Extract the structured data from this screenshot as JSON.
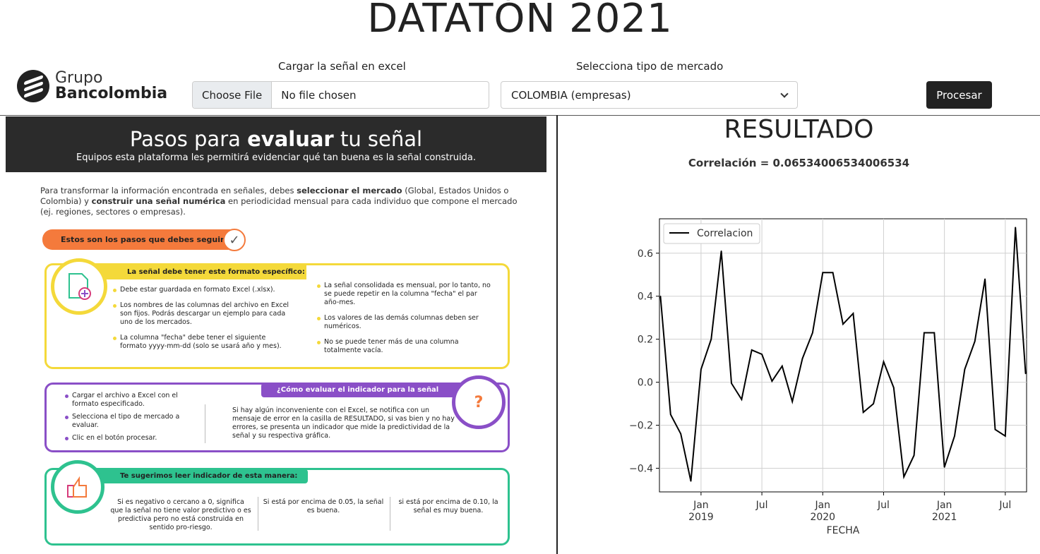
{
  "header": {
    "title": "DATATÓN 2021",
    "logo_line1": "Grupo",
    "logo_line2": "Bancolombia",
    "upload_label": "Cargar la señal en excel",
    "choose_file": "Choose File",
    "no_file": "No file chosen",
    "market_label": "Selecciona tipo de mercado",
    "market_value": "COLOMBIA (empresas)",
    "process_button": "Procesar"
  },
  "left": {
    "banner_title_a": "Pasos para ",
    "banner_title_b": "evaluar",
    "banner_title_c": " tu señal",
    "banner_subtitle": "Equipos esta plataforma les permitirá evidenciar qué tan buena es la señal construida.",
    "intro_1": "Para transformar la información encontrada en señales, debes ",
    "intro_b1": "seleccionar el mercado",
    "intro_2": " (Global, Estados Unidos o Colombia) y ",
    "intro_b2": "construir una señal numérica",
    "intro_3": " en periodicidad mensual para cada individuo que compone el mercado (ej. regiones, sectores o empresas).",
    "steps_pill": "Estos son los pasos que debes seguir:",
    "format_tag": "La señal debe tener este formato específico:",
    "format_left": [
      "Debe estar guardada en formato Excel (.xlsx).",
      "Los nombres de las columnas del archivo en Excel son fijos. Podrás descargar un ejemplo para cada uno de los mercados.",
      "La columna \"fecha\" debe tener el siguiente formato yyyy-mm-dd (solo se usará año y mes)."
    ],
    "format_right": [
      "La señal consolidada es mensual, por lo tanto, no se puede repetir en la columna \"fecha\" el par año-mes.",
      "Los valores de las demás columnas deben ser numéricos.",
      "No se puede tener más de una columna totalmente vacía."
    ],
    "eval_tag": "¿Cómo evaluar el indicador para la señal construida?",
    "eval_left": [
      "Cargar el archivo a Excel con el formato especificado.",
      "Selecciona el tipo de mercado a evaluar.",
      "Clic en el botón procesar."
    ],
    "eval_right": "Si hay algún inconveniente con el Excel, se notifica con un mensaje de error en la casilla de RESULTADO, si vas bien y no hay errores, se presenta un indicador que mide la predictividad de la señal y su respectiva gráfica.",
    "read_tag": "Te sugerimos leer indicador de esta manera:",
    "read_cols": [
      "Si es negativo o cercano a 0, significa que la señal no tiene valor predictivo o es predictiva pero no está construida en sentido pro-riesgo.",
      "Si está por encima de 0.05, la señal es buena.",
      "si está por encima de 0.10, la señal es muy buena."
    ]
  },
  "right": {
    "title": "RESULTADO",
    "correlation": "Correlación = 0.06534006534006534"
  },
  "chart_data": {
    "type": "line",
    "legend": "Correlacion",
    "legend_position": "top-left",
    "xlabel": "FECHA",
    "ylim": [
      -0.51,
      0.76
    ],
    "y_ticks": [
      "0.6",
      "0.4",
      "0.2",
      "0.0",
      "−0.2",
      "−0.4"
    ],
    "y_tick_values": [
      0.6,
      0.4,
      0.2,
      0.0,
      -0.2,
      -0.4
    ],
    "x_ticks": [
      {
        "label": "Jan",
        "sub": "2019",
        "month": 4
      },
      {
        "label": "Jul",
        "sub": "",
        "month": 10
      },
      {
        "label": "Jan",
        "sub": "2020",
        "month": 16
      },
      {
        "label": "Jul",
        "sub": "",
        "month": 22
      },
      {
        "label": "Jan",
        "sub": "2021",
        "month": 28
      },
      {
        "label": "Jul",
        "sub": "",
        "month": 34
      }
    ],
    "x_range": [
      -0.1,
      36.1
    ],
    "grid": true,
    "color": "#000000",
    "series": [
      {
        "name": "Correlacion",
        "x": [
          "2018-09",
          "2018-10",
          "2018-11",
          "2018-12",
          "2019-01",
          "2019-02",
          "2019-03",
          "2019-04",
          "2019-05",
          "2019-06",
          "2019-07",
          "2019-08",
          "2019-09",
          "2019-10",
          "2019-11",
          "2019-12",
          "2020-01",
          "2020-02",
          "2020-03",
          "2020-04",
          "2020-05",
          "2020-06",
          "2020-07",
          "2020-08",
          "2020-09",
          "2020-10",
          "2020-11",
          "2020-12",
          "2021-01",
          "2021-02",
          "2021-03",
          "2021-04",
          "2021-05",
          "2021-06",
          "2021-07",
          "2021-08",
          "2021-09"
        ],
        "values": [
          0.4,
          -0.15,
          -0.24,
          -0.46,
          0.06,
          0.2,
          0.61,
          -0.005,
          -0.08,
          0.15,
          0.13,
          0.005,
          0.075,
          -0.09,
          0.11,
          0.23,
          0.51,
          0.51,
          0.27,
          0.32,
          -0.14,
          -0.1,
          0.095,
          -0.025,
          -0.44,
          -0.34,
          0.23,
          0.23,
          -0.395,
          -0.25,
          0.06,
          0.19,
          0.48,
          -0.22,
          -0.25,
          0.72,
          0.04
        ]
      }
    ]
  }
}
